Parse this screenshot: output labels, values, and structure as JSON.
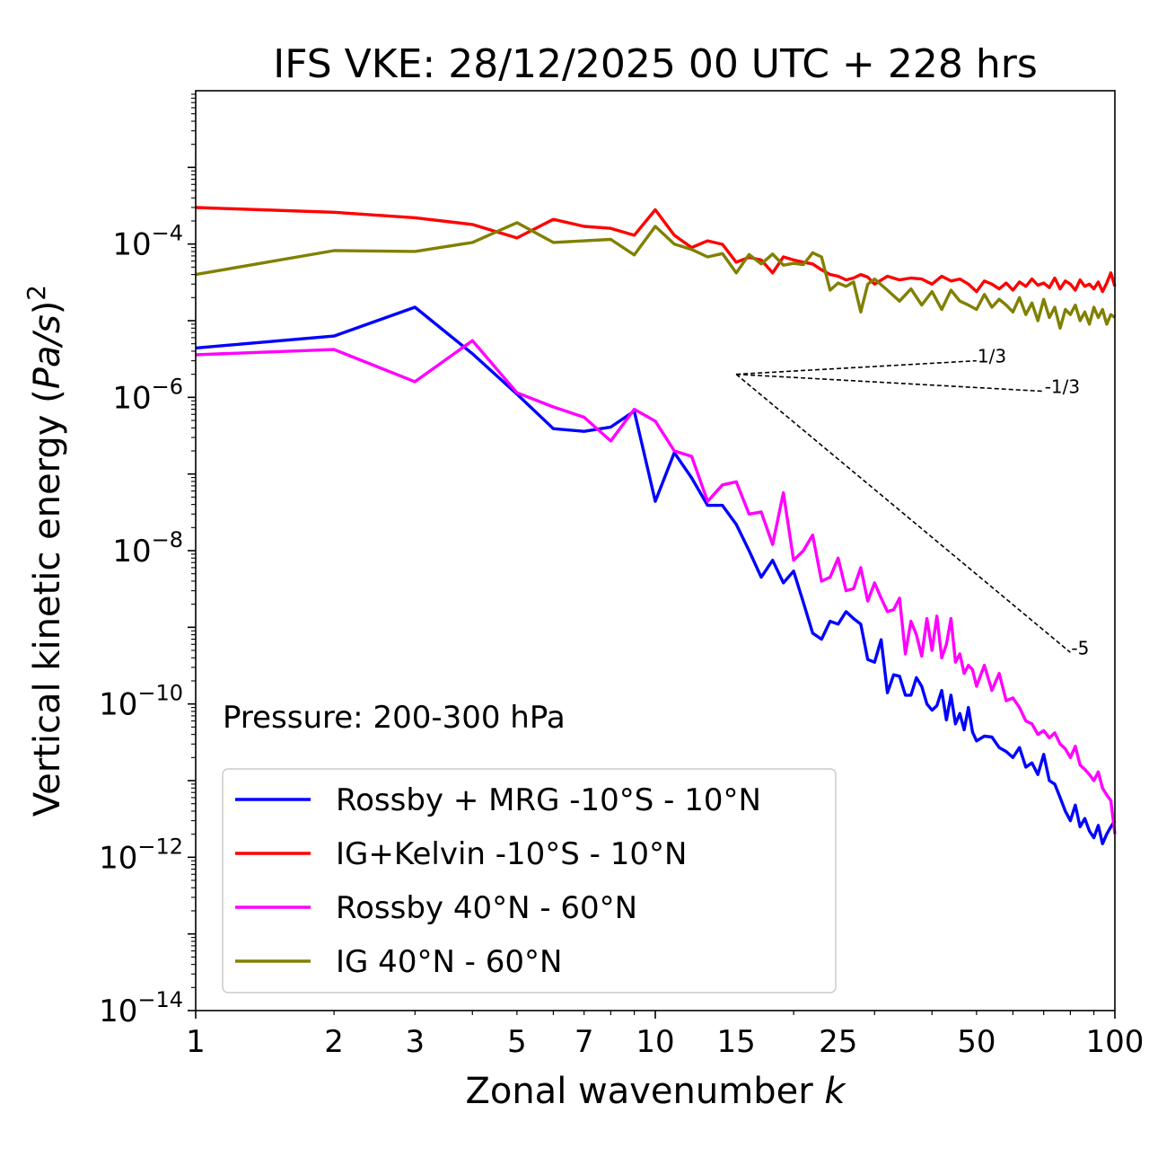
{
  "chart_data": {
    "type": "line",
    "title": "IFS VKE: 28/12/2025 00 UTC + 228 hrs",
    "xlabel": "Zonal wavenumber k",
    "xlabel_main": "Zonal wavenumber ",
    "xlabel_var": "k",
    "ylabel_main": "Vertical kinetic energy (",
    "ylabel_var": "Pa/s",
    "ylabel_close": ")",
    "ylabel_exp": "2",
    "xscale": "log",
    "yscale": "log",
    "xlim": [
      1,
      100
    ],
    "ylim": [
      1e-14,
      0.01
    ],
    "xticks": [
      1,
      2,
      3,
      5,
      7,
      10,
      15,
      25,
      50,
      100
    ],
    "xtick_labels": [
      "1",
      "2",
      "3",
      "5",
      "7",
      "10",
      "15",
      "25",
      "50",
      "100"
    ],
    "yticks": [
      {
        "value": 1e-14,
        "base": "10",
        "exp": "−14"
      },
      {
        "value": 1e-12,
        "base": "10",
        "exp": "−12"
      },
      {
        "value": 1e-10,
        "base": "10",
        "exp": "−10"
      },
      {
        "value": 1e-08,
        "base": "10",
        "exp": "−8"
      },
      {
        "value": 1e-06,
        "base": "10",
        "exp": "−6"
      },
      {
        "value": 0.0001,
        "base": "10",
        "exp": "−4"
      }
    ],
    "annotation": "Pressure: 200-300 hPa",
    "legend_position": "lower-left",
    "series": [
      {
        "name": "Rossby + MRG -10°S - 10°N",
        "color": "#0000ff",
        "points": [
          [
            1,
            4.4e-06
          ],
          [
            2,
            6.3e-06
          ],
          [
            3,
            1.5e-05
          ],
          [
            4,
            3.7e-06
          ],
          [
            5,
            1.1e-06
          ],
          [
            6,
            3.9e-07
          ],
          [
            7,
            3.6e-07
          ],
          [
            8,
            4.1e-07
          ],
          [
            9,
            6.6e-07
          ],
          [
            10,
            4.4e-08
          ],
          [
            11,
            1.9e-07
          ],
          [
            12,
            8.9e-08
          ],
          [
            13,
            3.9e-08
          ],
          [
            14,
            3.9e-08
          ],
          [
            15,
            2.2e-08
          ],
          [
            16,
            1e-08
          ],
          [
            17,
            4.5e-09
          ],
          [
            18,
            7.5e-09
          ],
          [
            19,
            3.8e-09
          ],
          [
            20,
            5.4e-09
          ],
          [
            21,
            2.1e-09
          ],
          [
            22,
            8.4e-10
          ],
          [
            23,
            7e-10
          ],
          [
            24,
            1.2e-09
          ],
          [
            25,
            1.1e-09
          ],
          [
            26,
            1.6e-09
          ],
          [
            27,
            1.3e-09
          ],
          [
            28,
            1.1e-09
          ],
          [
            29,
            3.8e-10
          ],
          [
            30,
            3.5e-10
          ],
          [
            31,
            6.9e-10
          ],
          [
            32,
            1.4e-10
          ],
          [
            33,
            2.4e-10
          ],
          [
            34,
            2.3e-10
          ],
          [
            35,
            1.3e-10
          ],
          [
            36,
            1.3e-10
          ],
          [
            37,
            2.2e-10
          ],
          [
            38,
            1.7e-10
          ],
          [
            39,
            1e-10
          ],
          [
            40,
            8.3e-11
          ],
          [
            41,
            9.5e-11
          ],
          [
            42,
            1.5e-10
          ],
          [
            43,
            6.2e-11
          ],
          [
            44,
            1.3e-10
          ],
          [
            45,
            5.5e-11
          ],
          [
            46,
            7.5e-11
          ],
          [
            47,
            4.6e-11
          ],
          [
            48,
            9e-11
          ],
          [
            49,
            4.3e-11
          ],
          [
            50,
            3.3e-11
          ],
          [
            52,
            3.8e-11
          ],
          [
            54,
            3.7e-11
          ],
          [
            56,
            2.7e-11
          ],
          [
            58,
            2.4e-11
          ],
          [
            60,
            2e-11
          ],
          [
            62,
            2.7e-11
          ],
          [
            64,
            1.5e-11
          ],
          [
            66,
            1.7e-11
          ],
          [
            68,
            1.2e-11
          ],
          [
            70,
            2.2e-11
          ],
          [
            72,
            1e-11
          ],
          [
            74,
            9e-12
          ],
          [
            76,
            6e-12
          ],
          [
            78,
            4e-12
          ],
          [
            80,
            3e-12
          ],
          [
            82,
            4.8e-12
          ],
          [
            84,
            2.5e-12
          ],
          [
            86,
            3.2e-12
          ],
          [
            88,
            2.2e-12
          ],
          [
            90,
            1.8e-12
          ],
          [
            92,
            2.6e-12
          ],
          [
            94,
            1.5e-12
          ],
          [
            96,
            2e-12
          ],
          [
            98,
            2.5e-12
          ],
          [
            100,
            3e-12
          ]
        ]
      },
      {
        "name": "IG+Kelvin -10°S - 10°N",
        "color": "#ff0000",
        "points": [
          [
            1,
            0.0003
          ],
          [
            2,
            0.00026
          ],
          [
            3,
            0.00022
          ],
          [
            4,
            0.00018
          ],
          [
            5,
            0.00012
          ],
          [
            6,
            0.00021
          ],
          [
            7,
            0.00017
          ],
          [
            8,
            0.00016
          ],
          [
            9,
            0.00013
          ],
          [
            10,
            0.00028
          ],
          [
            11,
            0.00013
          ],
          [
            12,
            9e-05
          ],
          [
            13,
            0.00011
          ],
          [
            14,
            9.9e-05
          ],
          [
            15,
            5.8e-05
          ],
          [
            16,
            6.7e-05
          ],
          [
            17,
            6.2e-05
          ],
          [
            18,
            4.2e-05
          ],
          [
            19,
            6.8e-05
          ],
          [
            20,
            6.2e-05
          ],
          [
            21,
            5.8e-05
          ],
          [
            22,
            5.5e-05
          ],
          [
            23,
            4.6e-05
          ],
          [
            24,
            4e-05
          ],
          [
            25,
            3.8e-05
          ],
          [
            26,
            3.4e-05
          ],
          [
            27,
            3.6e-05
          ],
          [
            28,
            4e-05
          ],
          [
            29,
            3.7e-05
          ],
          [
            30,
            3e-05
          ],
          [
            32,
            3.8e-05
          ],
          [
            34,
            3.4e-05
          ],
          [
            36,
            3.6e-05
          ],
          [
            38,
            3.5e-05
          ],
          [
            40,
            3e-05
          ],
          [
            42,
            3.8e-05
          ],
          [
            44,
            3.3e-05
          ],
          [
            46,
            3.5e-05
          ],
          [
            48,
            3e-05
          ],
          [
            50,
            2.4e-05
          ],
          [
            52,
            3.3e-05
          ],
          [
            54,
            3e-05
          ],
          [
            56,
            2.6e-05
          ],
          [
            58,
            3.1e-05
          ],
          [
            60,
            2.5e-05
          ],
          [
            62,
            3.2e-05
          ],
          [
            64,
            2.8e-05
          ],
          [
            66,
            3.5e-05
          ],
          [
            68,
            2.9e-05
          ],
          [
            70,
            3.1e-05
          ],
          [
            72,
            2.7e-05
          ],
          [
            74,
            3.6e-05
          ],
          [
            76,
            2.6e-05
          ],
          [
            78,
            3.3e-05
          ],
          [
            80,
            3e-05
          ],
          [
            82,
            2.5e-05
          ],
          [
            84,
            3.4e-05
          ],
          [
            86,
            2.8e-05
          ],
          [
            88,
            3e-05
          ],
          [
            90,
            2.6e-05
          ],
          [
            92,
            3.2e-05
          ],
          [
            94,
            2.4e-05
          ],
          [
            96,
            3.1e-05
          ],
          [
            98,
            4.2e-05
          ],
          [
            100,
            2.8e-05
          ]
        ]
      },
      {
        "name": "Rossby 40°N - 60°N",
        "color": "#ff00ff",
        "points": [
          [
            1,
            3.6e-06
          ],
          [
            2,
            4.2e-06
          ],
          [
            3,
            1.6e-06
          ],
          [
            4,
            5.5e-06
          ],
          [
            5,
            1.15e-06
          ],
          [
            6,
            7.5e-07
          ],
          [
            7,
            5.5e-07
          ],
          [
            8,
            2.7e-07
          ],
          [
            9,
            7e-07
          ],
          [
            10,
            4.9e-07
          ],
          [
            11,
            2e-07
          ],
          [
            12,
            1.7e-07
          ],
          [
            13,
            4.4e-08
          ],
          [
            14,
            7.2e-08
          ],
          [
            15,
            7.9e-08
          ],
          [
            16,
            3e-08
          ],
          [
            17,
            3.2e-08
          ],
          [
            18,
            1.2e-08
          ],
          [
            19,
            5.7e-08
          ],
          [
            20,
            7.5e-09
          ],
          [
            21,
            1e-08
          ],
          [
            22,
            1.6e-08
          ],
          [
            23,
            4e-09
          ],
          [
            24,
            4.5e-09
          ],
          [
            25,
            8e-09
          ],
          [
            26,
            3e-09
          ],
          [
            27,
            3.2e-09
          ],
          [
            28,
            6e-09
          ],
          [
            29,
            2.2e-09
          ],
          [
            30,
            3.8e-09
          ],
          [
            31,
            2.4e-09
          ],
          [
            32,
            1.6e-09
          ],
          [
            33,
            1.7e-09
          ],
          [
            34,
            2.4e-09
          ],
          [
            35,
            4.5e-10
          ],
          [
            36,
            1.2e-09
          ],
          [
            37,
            8e-10
          ],
          [
            38,
            4.2e-10
          ],
          [
            39,
            1.3e-09
          ],
          [
            40,
            5e-10
          ],
          [
            41,
            1.4e-09
          ],
          [
            42,
            4e-10
          ],
          [
            43,
            6e-10
          ],
          [
            44,
            1.3e-09
          ],
          [
            45,
            3.5e-10
          ],
          [
            46,
            4.5e-10
          ],
          [
            47,
            2.5e-10
          ],
          [
            48,
            3.2e-10
          ],
          [
            49,
            2.8e-10
          ],
          [
            50,
            1.7e-10
          ],
          [
            52,
            3.2e-10
          ],
          [
            54,
            1.5e-10
          ],
          [
            56,
            2.5e-10
          ],
          [
            58,
            1.1e-10
          ],
          [
            60,
            1.2e-10
          ],
          [
            62,
            9e-11
          ],
          [
            64,
            6e-11
          ],
          [
            66,
            5.5e-11
          ],
          [
            68,
            4e-11
          ],
          [
            70,
            4.5e-11
          ],
          [
            72,
            3.6e-11
          ],
          [
            74,
            4.2e-11
          ],
          [
            76,
            3e-11
          ],
          [
            78,
            2.6e-11
          ],
          [
            80,
            2e-11
          ],
          [
            82,
            2.8e-11
          ],
          [
            84,
            1.6e-11
          ],
          [
            86,
            1.4e-11
          ],
          [
            88,
            1.2e-11
          ],
          [
            90,
            1e-11
          ],
          [
            92,
            1.3e-11
          ],
          [
            94,
            8e-12
          ],
          [
            96,
            6.5e-12
          ],
          [
            98,
            5.5e-12
          ],
          [
            100,
            2e-12
          ]
        ]
      },
      {
        "name": "IG 40°N - 60°N",
        "color": "#808000",
        "points": [
          [
            1,
            4e-05
          ],
          [
            2,
            8.2e-05
          ],
          [
            3,
            8e-05
          ],
          [
            4,
            0.000105
          ],
          [
            5,
            0.00019
          ],
          [
            6,
            0.000105
          ],
          [
            7,
            0.00011
          ],
          [
            8,
            0.000115
          ],
          [
            9,
            7.2e-05
          ],
          [
            10,
            0.00017
          ],
          [
            11,
            0.0001
          ],
          [
            12,
            8.5e-05
          ],
          [
            13,
            6.8e-05
          ],
          [
            14,
            7.5e-05
          ],
          [
            15,
            4.2e-05
          ],
          [
            16,
            7.3e-05
          ],
          [
            17,
            5.5e-05
          ],
          [
            18,
            7.4e-05
          ],
          [
            19,
            5.3e-05
          ],
          [
            20,
            5.6e-05
          ],
          [
            21,
            5.4e-05
          ],
          [
            22,
            7.7e-05
          ],
          [
            23,
            6.8e-05
          ],
          [
            24,
            2.5e-05
          ],
          [
            25,
            3.1e-05
          ],
          [
            26,
            2.8e-05
          ],
          [
            27,
            3.2e-05
          ],
          [
            28,
            1.3e-05
          ],
          [
            29,
            3e-05
          ],
          [
            30,
            3.5e-05
          ],
          [
            32,
            2.5e-05
          ],
          [
            34,
            1.8e-05
          ],
          [
            36,
            2.6e-05
          ],
          [
            38,
            1.6e-05
          ],
          [
            40,
            2.4e-05
          ],
          [
            42,
            1.4e-05
          ],
          [
            44,
            2.5e-05
          ],
          [
            46,
            1.8e-05
          ],
          [
            48,
            1.6e-05
          ],
          [
            50,
            1.4e-05
          ],
          [
            52,
            2.2e-05
          ],
          [
            54,
            1.5e-05
          ],
          [
            56,
            1.9e-05
          ],
          [
            58,
            1.6e-05
          ],
          [
            60,
            1.3e-05
          ],
          [
            62,
            2e-05
          ],
          [
            64,
            1.2e-05
          ],
          [
            66,
            1.7e-05
          ],
          [
            68,
            1e-05
          ],
          [
            70,
            1.9e-05
          ],
          [
            72,
            1.1e-05
          ],
          [
            74,
            1.5e-05
          ],
          [
            76,
            8e-06
          ],
          [
            78,
            1.4e-05
          ],
          [
            80,
            1.2e-05
          ],
          [
            82,
            1.6e-05
          ],
          [
            84,
            1e-05
          ],
          [
            86,
            1.3e-05
          ],
          [
            88,
            9e-06
          ],
          [
            90,
            1.5e-05
          ],
          [
            92,
            1.1e-05
          ],
          [
            94,
            1.4e-05
          ],
          [
            96,
            9e-06
          ],
          [
            98,
            1.2e-05
          ],
          [
            100,
            1.1e-05
          ]
        ]
      }
    ],
    "reference_lines": [
      {
        "label": "1/3",
        "from": [
          15,
          2e-06
        ],
        "to": [
          50,
          3e-06
        ]
      },
      {
        "label": "-1/3",
        "from": [
          15,
          2e-06
        ],
        "to": [
          70,
          1.2e-06
        ]
      },
      {
        "label": "-5",
        "from": [
          15,
          2e-06
        ],
        "to": [
          80,
          4.7e-10
        ]
      }
    ]
  }
}
